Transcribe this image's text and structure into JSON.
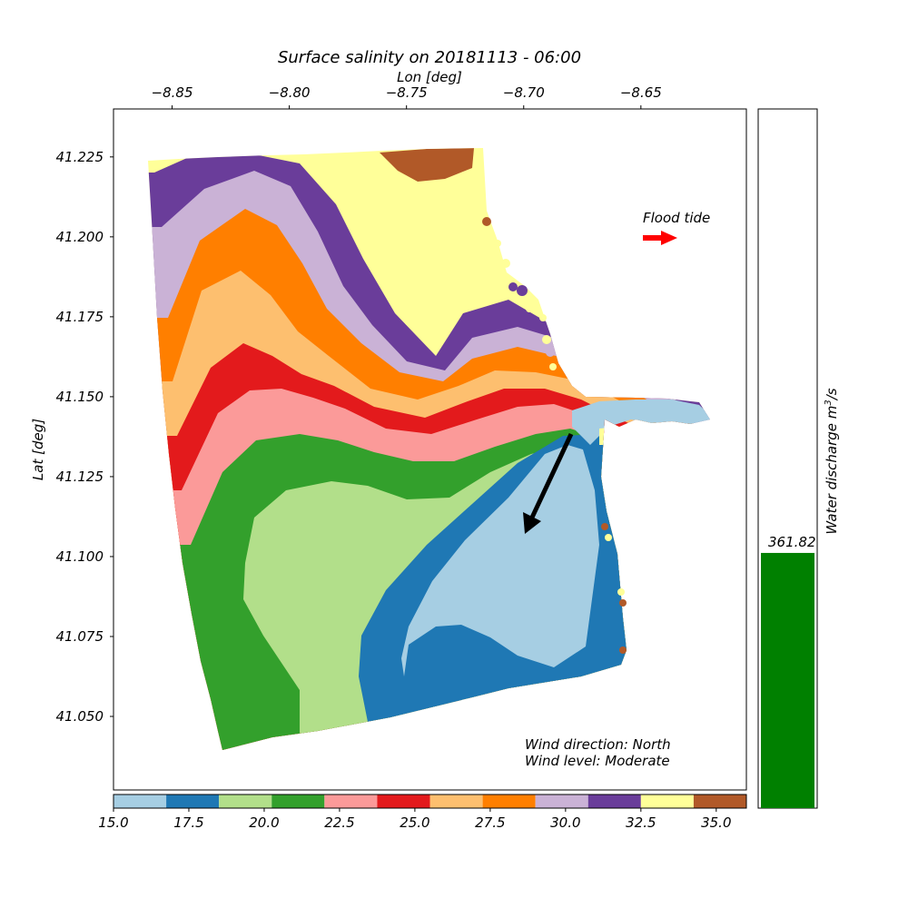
{
  "title": "Surface salinity on 20181113 - 06:00",
  "x_axis_label": "Lon [deg]",
  "y_axis_label": "Lat [deg]",
  "flood_label": "Flood tide",
  "wind_direction_text": "Wind direction: North",
  "wind_level_text": "Wind level: Moderate",
  "discharge_label": "Water discharge m",
  "discharge_label_sup": "3",
  "discharge_label_tail": "/s",
  "discharge_value_text": "361.82",
  "colors": {
    "arrow": "#000000",
    "flood_arrow": "#ff0000",
    "discharge_bar": "#008000"
  },
  "chart_data": {
    "type": "heatmap",
    "title": "Surface salinity on 20181113 - 06:00",
    "xlabel": "Lon [deg]",
    "ylabel": "Lat [deg]",
    "xlim": [
      -8.875,
      -8.605
    ],
    "ylim": [
      41.027,
      41.24
    ],
    "x_ticks": [
      -8.85,
      -8.8,
      -8.75,
      -8.7,
      -8.65
    ],
    "x_tick_labels": [
      "−8.85",
      "−8.80",
      "−8.75",
      "−8.70",
      "−8.65"
    ],
    "y_ticks": [
      41.225,
      41.2,
      41.175,
      41.15,
      41.125,
      41.1,
      41.075,
      41.05
    ],
    "y_tick_labels": [
      "41.225",
      "41.200",
      "41.175",
      "41.150",
      "41.125",
      "41.100",
      "41.075",
      "41.050"
    ],
    "colorbar": {
      "range": [
        15.0,
        36.0
      ],
      "ticks": [
        15.0,
        17.5,
        20.0,
        22.5,
        25.0,
        27.5,
        30.0,
        32.5,
        35.0
      ],
      "tick_labels": [
        "15.0",
        "17.5",
        "20.0",
        "22.5",
        "25.0",
        "27.5",
        "30.0",
        "32.5",
        "35.0"
      ],
      "colors": [
        "#a6cee3",
        "#1f78b4",
        "#b2df8a",
        "#33a02c",
        "#fb9a99",
        "#e31a1c",
        "#fdbf6f",
        "#ff7f00",
        "#cab2d6",
        "#6a3d9a",
        "#ffff99",
        "#b15928"
      ]
    },
    "wind_arrow": {
      "from": [
        -8.681,
        41.139
      ],
      "to": [
        -8.7,
        41.107
      ]
    },
    "flood_arrow": {
      "from": [
        -8.649,
        41.2
      ],
      "to": [
        -8.635,
        41.2
      ]
    },
    "water_discharge": {
      "value": 361.82,
      "fill_fraction": 0.365
    }
  }
}
